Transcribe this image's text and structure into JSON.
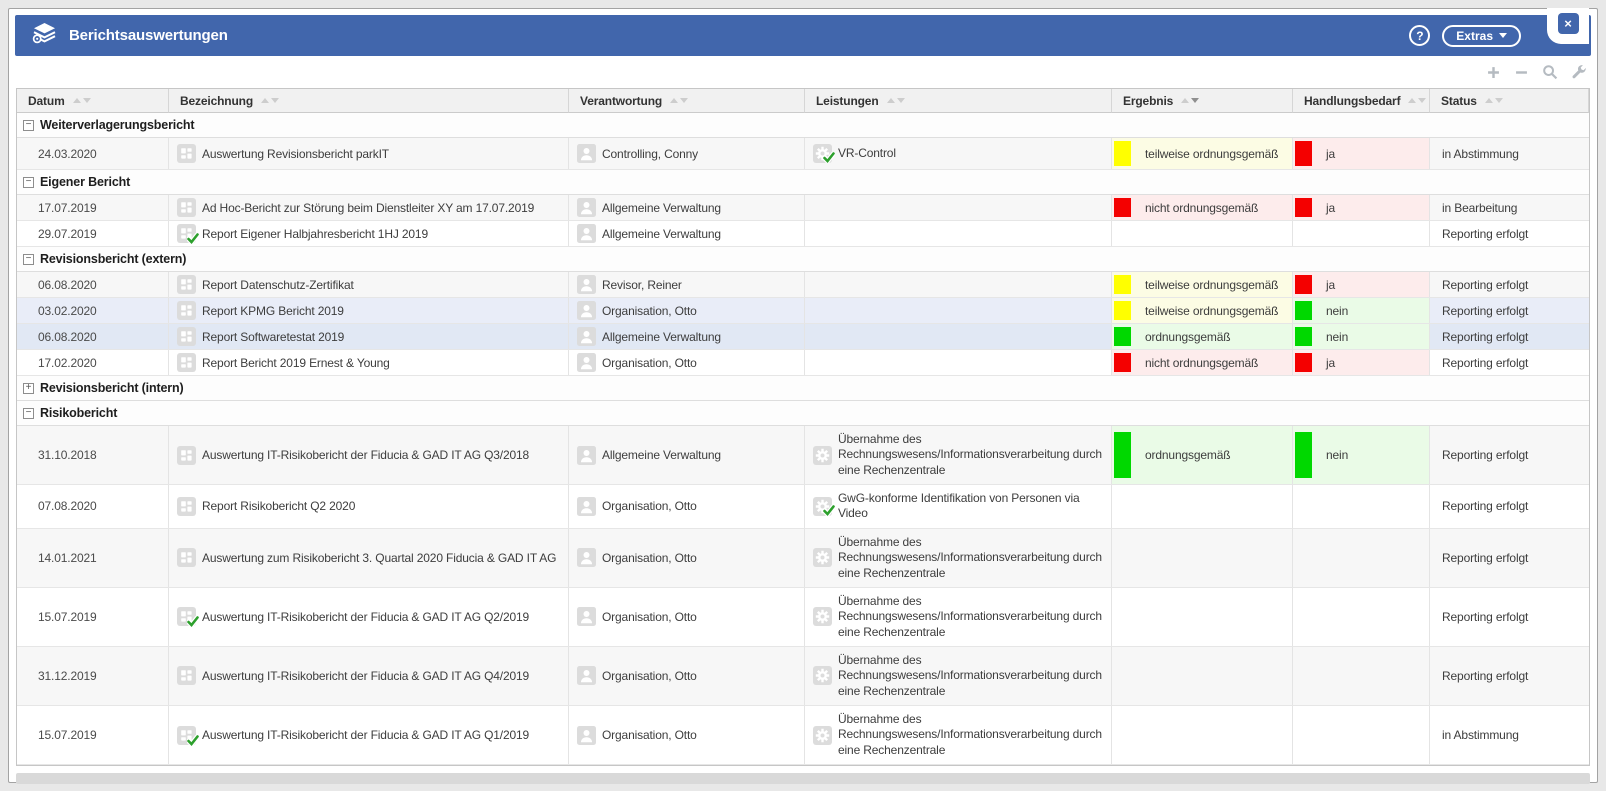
{
  "titlebar": {
    "title": "Berichtsauswertungen",
    "app_icon": "reports-stack",
    "help_label": "?",
    "extras_label": "Extras",
    "close_label": "×"
  },
  "toolbar": {
    "icons": [
      "add",
      "remove",
      "search",
      "settings"
    ]
  },
  "colors": {
    "accent_blue": "#4166ac",
    "chip_red": "#f40000",
    "chip_yellow": "#ffff00",
    "chip_green": "#00d800",
    "tint_red": "#fdecec",
    "tint_yellow": "#fcfce4",
    "tint_green": "#eafbe7",
    "row_striped": "#f7f7f7",
    "row_selected": "#e9edf8"
  },
  "table": {
    "columns": [
      {
        "label": "Datum",
        "sort": "none"
      },
      {
        "label": "Bezeichnung",
        "sort": "none"
      },
      {
        "label": "Verantwortung",
        "sort": "none"
      },
      {
        "label": "Leistungen",
        "sort": "none"
      },
      {
        "label": "Ergebnis",
        "sort": "desc"
      },
      {
        "label": "Handlungsbedarf",
        "sort": "none"
      },
      {
        "label": "Status",
        "sort": "none"
      }
    ],
    "groups": [
      {
        "label": "Weiterverlagerungsbericht",
        "state": "expanded",
        "rows": [
          {
            "datum": "24.03.2020",
            "bezeichnung": {
              "icon": "report",
              "checked": false,
              "text": "Auswertung Revisionsbericht parkIT"
            },
            "verantwortung": {
              "icon": "person",
              "text": "Controlling, Conny"
            },
            "leistung": {
              "icon": "gear",
              "checked": true,
              "text": "VR-Control"
            },
            "ergebnis": {
              "level": "yellow",
              "text": "teilweise ordnungsgemäß"
            },
            "handlungsbedarf": {
              "level": "red",
              "text": "ja"
            },
            "status": "in Abstimmung",
            "selected": false
          }
        ]
      },
      {
        "label": "Eigener Bericht",
        "state": "expanded",
        "rows": [
          {
            "datum": "17.07.2019",
            "bezeichnung": {
              "icon": "report",
              "checked": false,
              "text": "Ad Hoc-Bericht zur Störung beim Dienstleiter XY am 17.07.2019"
            },
            "verantwortung": {
              "icon": "person",
              "text": "Allgemeine Verwaltung"
            },
            "leistung": null,
            "ergebnis": {
              "level": "red",
              "text": "nicht ordnungsgemäß"
            },
            "handlungsbedarf": {
              "level": "red",
              "text": "ja"
            },
            "status": "in Bearbeitung",
            "selected": false
          },
          {
            "datum": "29.07.2019",
            "bezeichnung": {
              "icon": "report",
              "checked": true,
              "text": "Report Eigener Halbjahresbericht 1HJ 2019"
            },
            "verantwortung": {
              "icon": "person",
              "text": "Allgemeine Verwaltung"
            },
            "leistung": null,
            "ergebnis": null,
            "handlungsbedarf": null,
            "status": "Reporting erfolgt",
            "selected": false
          }
        ]
      },
      {
        "label": "Revisionsbericht (extern)",
        "state": "expanded",
        "rows": [
          {
            "datum": "06.08.2020",
            "bezeichnung": {
              "icon": "report",
              "checked": false,
              "text": "Report Datenschutz-Zertifikat"
            },
            "verantwortung": {
              "icon": "person",
              "text": "Revisor, Reiner"
            },
            "leistung": null,
            "ergebnis": {
              "level": "yellow",
              "text": "teilweise ordnungsgemäß"
            },
            "handlungsbedarf": {
              "level": "red",
              "text": "ja"
            },
            "status": "Reporting erfolgt",
            "selected": false
          },
          {
            "datum": "03.02.2020",
            "bezeichnung": {
              "icon": "report",
              "checked": false,
              "text": "Report KPMG Bericht 2019"
            },
            "verantwortung": {
              "icon": "person",
              "text": "Organisation, Otto"
            },
            "leistung": null,
            "ergebnis": {
              "level": "yellow",
              "text": "teilweise ordnungsgemäß"
            },
            "handlungsbedarf": {
              "level": "green",
              "text": "nein"
            },
            "status": "Reporting erfolgt",
            "selected": true
          },
          {
            "datum": "06.08.2020",
            "bezeichnung": {
              "icon": "report",
              "checked": false,
              "text": "Report Softwaretestat 2019"
            },
            "verantwortung": {
              "icon": "person",
              "text": "Allgemeine Verwaltung"
            },
            "leistung": null,
            "ergebnis": {
              "level": "green",
              "text": "ordnungsgemäß"
            },
            "handlungsbedarf": {
              "level": "green",
              "text": "nein"
            },
            "status": "Reporting erfolgt",
            "selected": true
          },
          {
            "datum": "17.02.2020",
            "bezeichnung": {
              "icon": "report",
              "checked": false,
              "text": "Report Bericht 2019 Ernest & Young"
            },
            "verantwortung": {
              "icon": "person",
              "text": "Organisation, Otto"
            },
            "leistung": null,
            "ergebnis": {
              "level": "red",
              "text": "nicht ordnungsgemäß"
            },
            "handlungsbedarf": {
              "level": "red",
              "text": "ja"
            },
            "status": "Reporting erfolgt",
            "selected": false
          }
        ]
      },
      {
        "label": "Revisionsbericht (intern)",
        "state": "collapsed",
        "rows": []
      },
      {
        "label": "Risikobericht",
        "state": "expanded",
        "rows": [
          {
            "datum": "31.10.2018",
            "bezeichnung": {
              "icon": "report",
              "checked": false,
              "text": "Auswertung IT-Risikobericht der Fiducia & GAD IT AG Q3/2018"
            },
            "verantwortung": {
              "icon": "person",
              "text": "Allgemeine Verwaltung"
            },
            "leistung": {
              "icon": "gear",
              "checked": false,
              "text": "Übernahme des Rechnungswesens/Informationsverarbeitung durch eine Rechenzentrale"
            },
            "ergebnis": {
              "level": "green",
              "text": "ordnungsgemäß"
            },
            "handlungsbedarf": {
              "level": "green",
              "text": "nein"
            },
            "status": "Reporting erfolgt",
            "selected": false
          },
          {
            "datum": "07.08.2020",
            "bezeichnung": {
              "icon": "report",
              "checked": false,
              "text": "Report Risikobericht Q2 2020"
            },
            "verantwortung": {
              "icon": "person",
              "text": "Organisation, Otto"
            },
            "leistung": {
              "icon": "gear",
              "checked": true,
              "text": "GwG-konforme Identifikation von Personen via Video"
            },
            "ergebnis": null,
            "handlungsbedarf": null,
            "status": "Reporting erfolgt",
            "selected": false
          },
          {
            "datum": "14.01.2021",
            "bezeichnung": {
              "icon": "report",
              "checked": false,
              "text": "Auswertung zum Risikobericht 3. Quartal 2020 Fiducia & GAD IT AG"
            },
            "verantwortung": {
              "icon": "person",
              "text": "Organisation, Otto"
            },
            "leistung": {
              "icon": "gear",
              "checked": false,
              "text": "Übernahme des Rechnungswesens/Informationsverarbeitung durch eine Rechenzentrale"
            },
            "ergebnis": null,
            "handlungsbedarf": null,
            "status": "Reporting erfolgt",
            "selected": false
          },
          {
            "datum": "15.07.2019",
            "bezeichnung": {
              "icon": "report",
              "checked": true,
              "text": "Auswertung IT-Risikobericht der Fiducia & GAD IT AG Q2/2019"
            },
            "verantwortung": {
              "icon": "person",
              "text": "Organisation, Otto"
            },
            "leistung": {
              "icon": "gear",
              "checked": false,
              "text": "Übernahme des Rechnungswesens/Informationsverarbeitung durch eine Rechenzentrale"
            },
            "ergebnis": null,
            "handlungsbedarf": null,
            "status": "Reporting erfolgt",
            "selected": false
          },
          {
            "datum": "31.12.2019",
            "bezeichnung": {
              "icon": "report",
              "checked": false,
              "text": "Auswertung IT-Risikobericht der Fiducia & GAD IT AG Q4/2019"
            },
            "verantwortung": {
              "icon": "person",
              "text": "Organisation, Otto"
            },
            "leistung": {
              "icon": "gear",
              "checked": false,
              "text": "Übernahme des Rechnungswesens/Informationsverarbeitung durch eine Rechenzentrale"
            },
            "ergebnis": null,
            "handlungsbedarf": null,
            "status": "Reporting erfolgt",
            "selected": false
          },
          {
            "datum": "15.07.2019",
            "bezeichnung": {
              "icon": "report",
              "checked": true,
              "text": "Auswertung IT-Risikobericht der Fiducia & GAD IT AG Q1/2019"
            },
            "verantwortung": {
              "icon": "person",
              "text": "Organisation, Otto"
            },
            "leistung": {
              "icon": "gear",
              "checked": false,
              "text": "Übernahme des Rechnungswesens/Informationsverarbeitung durch eine Rechenzentrale"
            },
            "ergebnis": null,
            "handlungsbedarf": null,
            "status": "in Abstimmung",
            "selected": false
          }
        ]
      }
    ]
  }
}
